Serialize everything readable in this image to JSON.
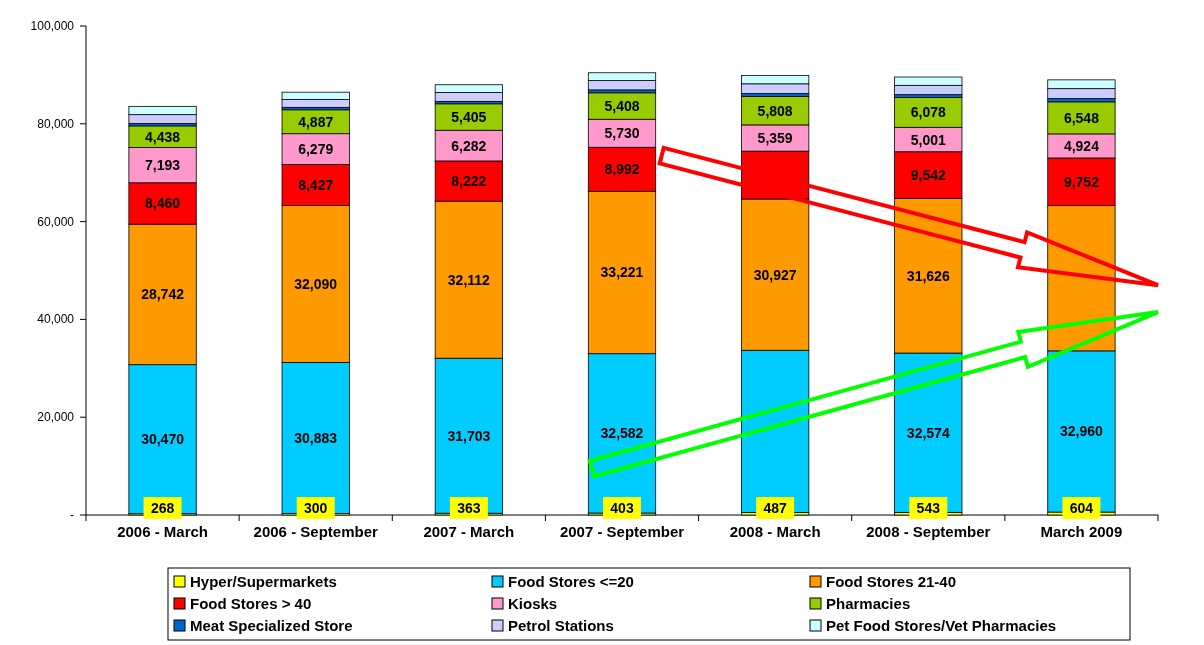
{
  "chart_data": {
    "type": "bar",
    "stacked": true,
    "legend": "bottom",
    "grid": false,
    "categories": [
      "2006 - March",
      "2006 - September",
      "2007 - March",
      "2007 - September",
      "2008 - March",
      "2008 - September",
      "March 2009"
    ],
    "ylim": [
      0,
      100000
    ],
    "yticks": [
      {
        "value": 0,
        "label": "-"
      },
      {
        "value": 20000,
        "label": "20,000"
      },
      {
        "value": 40000,
        "label": "40,000"
      },
      {
        "value": 60000,
        "label": "60,000"
      },
      {
        "value": 80000,
        "label": "80,000"
      },
      {
        "value": 100000,
        "label": "100,000"
      }
    ],
    "series": [
      {
        "name": "Hyper/Supermarkets",
        "color": "#ffff00",
        "values": [
          268,
          300,
          363,
          403,
          487,
          543,
          604
        ],
        "value_labels": [
          "268",
          "300",
          "363",
          "403",
          "487",
          "543",
          "604"
        ]
      },
      {
        "name": "Food Stores <=20",
        "color": "#00ccff",
        "values": [
          30470,
          30883,
          31703,
          32582,
          33200,
          32574,
          32960
        ],
        "value_labels": [
          "30,470",
          "30,883",
          "31,703",
          "32,582",
          null,
          "32,574",
          "32,960"
        ]
      },
      {
        "name": "Food Stores 21-40",
        "color": "#ff9900",
        "values": [
          28742,
          32090,
          32112,
          33221,
          30927,
          31626,
          29700
        ],
        "value_labels": [
          "28,742",
          "32,090",
          "32,112",
          "33,221",
          "30,927",
          "31,626",
          null
        ]
      },
      {
        "name": "Food Stores > 40",
        "color": "#ff0000",
        "values": [
          8460,
          8427,
          8222,
          8992,
          9800,
          9542,
          9752
        ],
        "value_labels": [
          "8,460",
          "8,427",
          "8,222",
          "8,992",
          null,
          "9,542",
          "9,752"
        ]
      },
      {
        "name": "Kiosks",
        "color": "#ff99cc",
        "values": [
          7193,
          6279,
          6282,
          5730,
          5359,
          5001,
          4924
        ],
        "value_labels": [
          "7,193",
          "6,279",
          "6,282",
          "5,730",
          "5,359",
          "5,001",
          "4,924"
        ]
      },
      {
        "name": "Pharmacies",
        "color": "#99cc00",
        "values": [
          4438,
          4887,
          5405,
          5408,
          5808,
          6078,
          6548
        ],
        "value_labels": [
          "4,438",
          "4,887",
          "5,405",
          "5,408",
          "5,808",
          "6,078",
          "6,548"
        ]
      },
      {
        "name": "Meat Specialized Store",
        "color": "#0066cc",
        "values": [
          500,
          500,
          500,
          600,
          600,
          600,
          700
        ]
      },
      {
        "name": "Petrol Stations",
        "color": "#ccccff",
        "values": [
          1800,
          1600,
          1800,
          1900,
          2000,
          1900,
          2000
        ]
      },
      {
        "name": "Pet Food Stores/Vet Pharmacies",
        "color": "#ccffff",
        "values": [
          1700,
          1500,
          1600,
          1600,
          1700,
          1700,
          1800
        ]
      }
    ]
  }
}
